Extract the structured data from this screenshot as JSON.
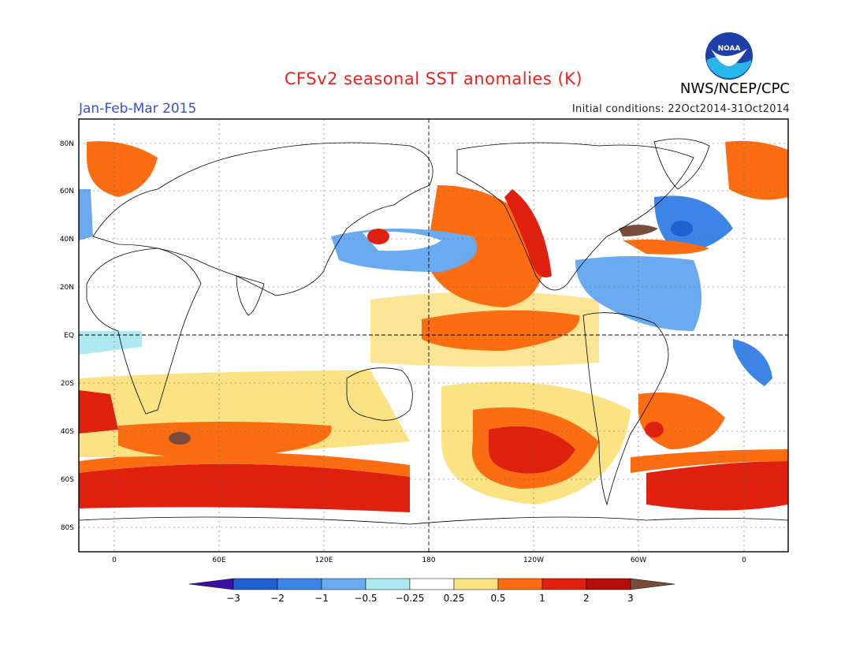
{
  "title": "CFSv2 seasonal SST anomalies (K)",
  "period": "Jan-Feb-Mar 2015",
  "initial_conditions": "Initial conditions: 22Oct2014-31Oct2014",
  "agency": "NWS/NCEP/CPC",
  "logo_text": "NOAA",
  "map": {
    "lat_labels": [
      "80N",
      "60N",
      "40N",
      "20N",
      "EQ",
      "20S",
      "40S",
      "60S",
      "80S"
    ],
    "lon_labels": [
      "0",
      "60E",
      "120E",
      "180",
      "120W",
      "60W",
      "0"
    ]
  },
  "colorbar": {
    "labels": [
      "-3",
      "-2",
      "-1",
      "-0.5",
      "-0.25",
      "0.25",
      "0.5",
      "1",
      "2",
      "3"
    ],
    "colors": [
      "#3b0ea8",
      "#1f5fcf",
      "#3c84e6",
      "#6aaaf0",
      "#aee8f0",
      "#ffffff",
      "#fbe283",
      "#fb6d10",
      "#e0200f",
      "#b50c0c",
      "#7a4a3a"
    ]
  },
  "colors": {
    "title": "#e8231c",
    "period": "#3a4fd6"
  }
}
